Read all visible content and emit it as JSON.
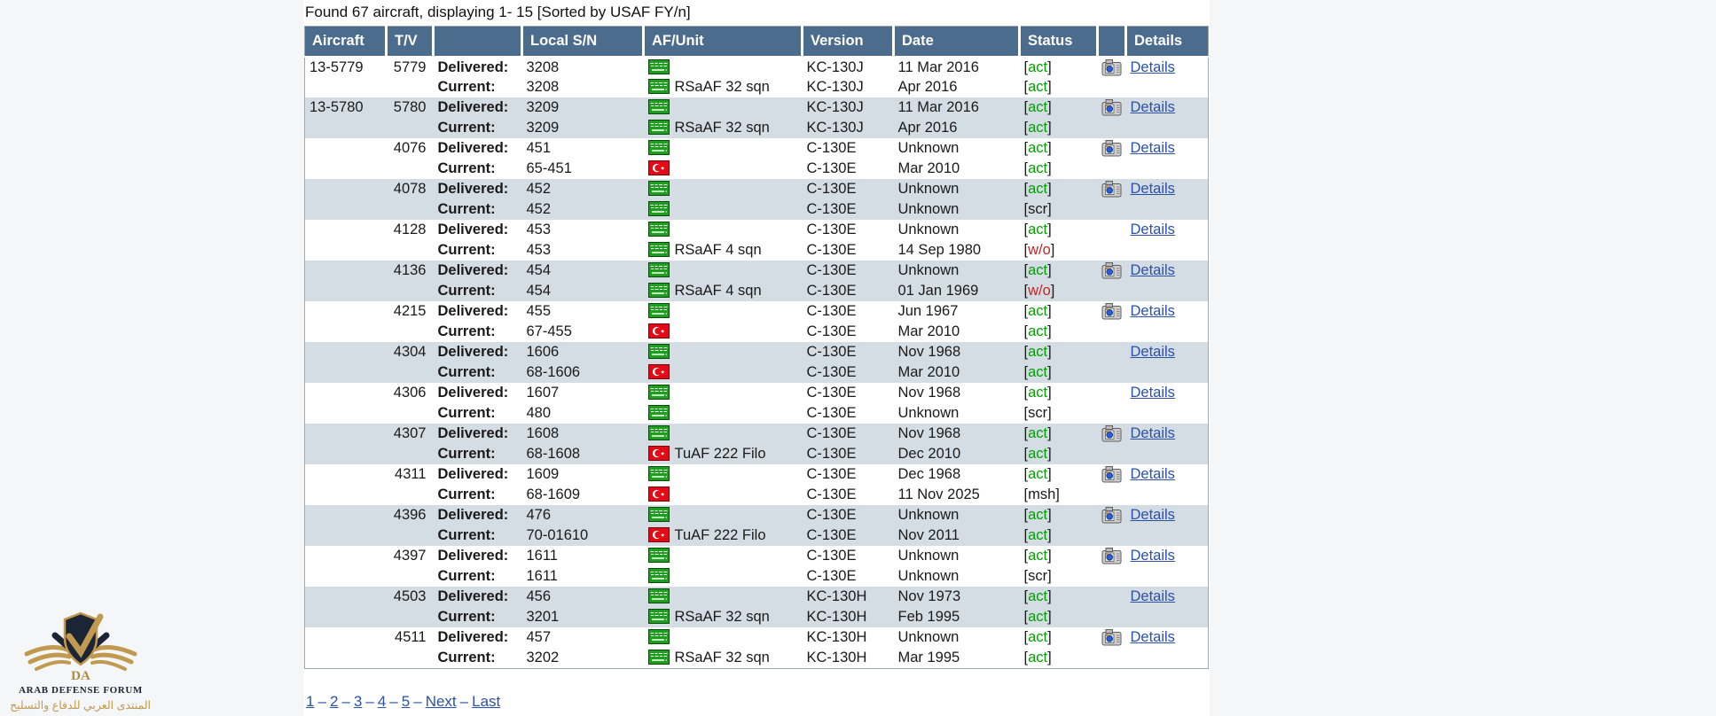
{
  "summary": "Found 67 aircraft, displaying 1- 15 [Sorted by USAF FY/n]",
  "colors": {
    "header_bg": "#4c6c8e",
    "alt_row": "#d4dce4",
    "link": "#2a52a8",
    "status_active": "#00a000",
    "status_written_off": "#cc2222",
    "saudi_flag_green": "#1e9e1e",
    "turkey_flag_red": "#e30a17",
    "watermark_gold": "#c19a4f",
    "watermark_navy": "#1c2535"
  },
  "table": {
    "columns": [
      "Aircraft",
      "T/V",
      "",
      "Local S/N",
      "AF/Unit",
      "Version",
      "Date",
      "Status",
      "",
      "Details"
    ],
    "delivered_label": "Delivered:",
    "current_label": "Current:",
    "details_label": "Details",
    "bracket_open": "[",
    "bracket_close": "]",
    "camera_icon": "camera-icon",
    "flags": {
      "sa": "saudi-flag",
      "tr": "turkey-flag"
    },
    "rows": [
      {
        "aircraft": "13-5779",
        "tv": "5779",
        "camera": true,
        "delivered": {
          "sn": "3208",
          "flag": "sa",
          "unit": "",
          "version": "KC-130J",
          "date": "11 Mar 2016",
          "status": "act"
        },
        "current": {
          "sn": "3208",
          "flag": "sa",
          "unit": "RSaAF 32 sqn",
          "version": "KC-130J",
          "date": "Apr 2016",
          "status": "act"
        }
      },
      {
        "aircraft": "13-5780",
        "tv": "5780",
        "camera": true,
        "delivered": {
          "sn": "3209",
          "flag": "sa",
          "unit": "",
          "version": "KC-130J",
          "date": "11 Mar 2016",
          "status": "act"
        },
        "current": {
          "sn": "3209",
          "flag": "sa",
          "unit": "RSaAF 32 sqn",
          "version": "KC-130J",
          "date": "Apr 2016",
          "status": "act"
        }
      },
      {
        "aircraft": "",
        "tv": "4076",
        "camera": true,
        "delivered": {
          "sn": "451",
          "flag": "sa",
          "unit": "",
          "version": "C-130E",
          "date": "Unknown",
          "status": "act"
        },
        "current": {
          "sn": "65-451",
          "flag": "tr",
          "unit": "",
          "version": "C-130E",
          "date": "Mar 2010",
          "status": "act"
        }
      },
      {
        "aircraft": "",
        "tv": "4078",
        "camera": true,
        "delivered": {
          "sn": "452",
          "flag": "sa",
          "unit": "",
          "version": "C-130E",
          "date": "Unknown",
          "status": "act"
        },
        "current": {
          "sn": "452",
          "flag": "sa",
          "unit": "",
          "version": "C-130E",
          "date": "Unknown",
          "status": "scr"
        }
      },
      {
        "aircraft": "",
        "tv": "4128",
        "camera": false,
        "delivered": {
          "sn": "453",
          "flag": "sa",
          "unit": "",
          "version": "C-130E",
          "date": "Unknown",
          "status": "act"
        },
        "current": {
          "sn": "453",
          "flag": "sa",
          "unit": "RSaAF 4 sqn",
          "version": "C-130E",
          "date": "14 Sep 1980",
          "status": "w/o"
        }
      },
      {
        "aircraft": "",
        "tv": "4136",
        "camera": true,
        "delivered": {
          "sn": "454",
          "flag": "sa",
          "unit": "",
          "version": "C-130E",
          "date": "Unknown",
          "status": "act"
        },
        "current": {
          "sn": "454",
          "flag": "sa",
          "unit": "RSaAF 4 sqn",
          "version": "C-130E",
          "date": "01 Jan 1969",
          "status": "w/o"
        }
      },
      {
        "aircraft": "",
        "tv": "4215",
        "camera": true,
        "delivered": {
          "sn": "455",
          "flag": "sa",
          "unit": "",
          "version": "C-130E",
          "date": "Jun 1967",
          "status": "act"
        },
        "current": {
          "sn": "67-455",
          "flag": "tr",
          "unit": "",
          "version": "C-130E",
          "date": "Mar 2010",
          "status": "act"
        }
      },
      {
        "aircraft": "",
        "tv": "4304",
        "camera": false,
        "delivered": {
          "sn": "1606",
          "flag": "sa",
          "unit": "",
          "version": "C-130E",
          "date": "Nov 1968",
          "status": "act"
        },
        "current": {
          "sn": "68-1606",
          "flag": "tr",
          "unit": "",
          "version": "C-130E",
          "date": "Mar 2010",
          "status": "act"
        }
      },
      {
        "aircraft": "",
        "tv": "4306",
        "camera": false,
        "delivered": {
          "sn": "1607",
          "flag": "sa",
          "unit": "",
          "version": "C-130E",
          "date": "Nov 1968",
          "status": "act"
        },
        "current": {
          "sn": "480",
          "flag": "sa",
          "unit": "",
          "version": "C-130E",
          "date": "Unknown",
          "status": "scr"
        }
      },
      {
        "aircraft": "",
        "tv": "4307",
        "camera": true,
        "delivered": {
          "sn": "1608",
          "flag": "sa",
          "unit": "",
          "version": "C-130E",
          "date": "Nov 1968",
          "status": "act"
        },
        "current": {
          "sn": "68-1608",
          "flag": "tr",
          "unit": "TuAF 222 Filo",
          "version": "C-130E",
          "date": "Dec 2010",
          "status": "act"
        }
      },
      {
        "aircraft": "",
        "tv": "4311",
        "camera": true,
        "delivered": {
          "sn": "1609",
          "flag": "sa",
          "unit": "",
          "version": "C-130E",
          "date": "Dec 1968",
          "status": "act"
        },
        "current": {
          "sn": "68-1609",
          "flag": "tr",
          "unit": "",
          "version": "C-130E",
          "date": "11 Nov 2025",
          "status": "msh"
        }
      },
      {
        "aircraft": "",
        "tv": "4396",
        "camera": true,
        "delivered": {
          "sn": "476",
          "flag": "sa",
          "unit": "",
          "version": "C-130E",
          "date": "Unknown",
          "status": "act"
        },
        "current": {
          "sn": "70-01610",
          "flag": "tr",
          "unit": "TuAF 222 Filo",
          "version": "C-130E",
          "date": "Nov 2011",
          "status": "act"
        }
      },
      {
        "aircraft": "",
        "tv": "4397",
        "camera": true,
        "delivered": {
          "sn": "1611",
          "flag": "sa",
          "unit": "",
          "version": "C-130E",
          "date": "Unknown",
          "status": "act"
        },
        "current": {
          "sn": "1611",
          "flag": "sa",
          "unit": "",
          "version": "C-130E",
          "date": "Unknown",
          "status": "scr"
        }
      },
      {
        "aircraft": "",
        "tv": "4503",
        "camera": false,
        "delivered": {
          "sn": "456",
          "flag": "sa",
          "unit": "",
          "version": "KC-130H",
          "date": "Nov 1973",
          "status": "act"
        },
        "current": {
          "sn": "3201",
          "flag": "sa",
          "unit": "RSaAF 32 sqn",
          "version": "KC-130H",
          "date": "Feb 1995",
          "status": "act"
        }
      },
      {
        "aircraft": "",
        "tv": "4511",
        "camera": true,
        "delivered": {
          "sn": "457",
          "flag": "sa",
          "unit": "",
          "version": "KC-130H",
          "date": "Unknown",
          "status": "act"
        },
        "current": {
          "sn": "3202",
          "flag": "sa",
          "unit": "RSaAF 32 sqn",
          "version": "KC-130H",
          "date": "Mar 1995",
          "status": "act"
        }
      }
    ]
  },
  "pagination": {
    "pages": [
      "1",
      "2",
      "3",
      "4",
      "5"
    ],
    "next_label": "Next",
    "last_label": "Last",
    "separator": "–"
  },
  "watermark": {
    "monogram": "DA",
    "title": "ARAB DEFENSE FORUM",
    "subtitle_ar": "المنتدى العربي للدفاع والتسليح"
  }
}
